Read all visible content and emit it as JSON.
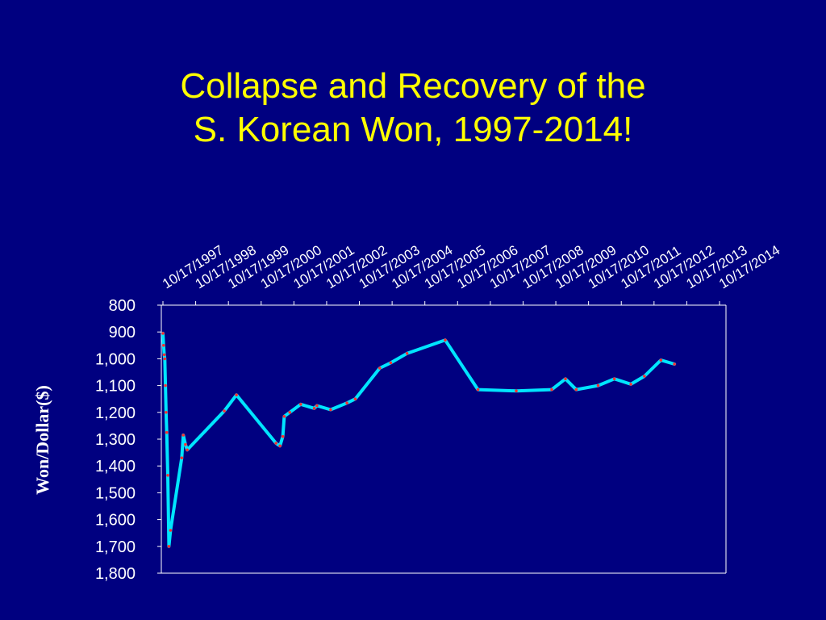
{
  "slide": {
    "title_line1": "Collapse and Recovery of the",
    "title_line2": "S. Korean Won, 1997-2014!"
  },
  "chart_data": {
    "type": "line",
    "ylabel": "Won/Dollar($)",
    "xlabel": "",
    "y_axis_inverted": true,
    "ylim": [
      800,
      1800
    ],
    "y_ticks": [
      800,
      900,
      1000,
      1100,
      1200,
      1300,
      1400,
      1500,
      1600,
      1700,
      1800
    ],
    "y_tick_labels": [
      "800",
      "900",
      "1,000",
      "1,100",
      "1,200",
      "1,300",
      "1,400",
      "1,500",
      "1,600",
      "1,700",
      "1,800"
    ],
    "x_axis_position": "top",
    "x_tick_labels": [
      "10/17/1997",
      "10/17/1998",
      "10/17/1999",
      "10/17/2000",
      "10/17/2001",
      "10/17/2002",
      "10/17/2003",
      "10/17/2004",
      "10/17/2005",
      "10/17/2006",
      "10/17/2007",
      "10/17/2008",
      "10/17/2009",
      "10/17/2010",
      "10/17/2011",
      "10/17/2012",
      "10/17/2013",
      "10/17/2014"
    ],
    "grid": false,
    "colors": {
      "line": "#00e5ff",
      "marker": "#ff3030",
      "axis": "#ffffff",
      "background": "#000080",
      "title": "#ffff00"
    },
    "series": [
      {
        "points": [
          [
            "1997-10-17",
            905
          ],
          [
            "1997-10-24",
            950
          ],
          [
            "1997-10-31",
            985
          ],
          [
            "1997-11-07",
            1000
          ],
          [
            "1997-11-14",
            1100
          ],
          [
            "1997-11-21",
            1200
          ],
          [
            "1997-11-28",
            1275
          ],
          [
            "1997-12-10",
            1435
          ],
          [
            "1997-12-23",
            1700
          ],
          [
            "1998-01-10",
            1640
          ],
          [
            "1998-05-15",
            1370
          ],
          [
            "1998-06-01",
            1285
          ],
          [
            "1998-06-25",
            1320
          ],
          [
            "1998-07-15",
            1340
          ],
          [
            "1999-09-01",
            1195
          ],
          [
            "2000-01-15",
            1135
          ],
          [
            "2001-04-01",
            1315
          ],
          [
            "2001-05-15",
            1325
          ],
          [
            "2001-06-15",
            1290
          ],
          [
            "2001-07-01",
            1215
          ],
          [
            "2001-09-01",
            1200
          ],
          [
            "2002-01-01",
            1170
          ],
          [
            "2002-06-01",
            1185
          ],
          [
            "2002-07-01",
            1175
          ],
          [
            "2002-12-01",
            1190
          ],
          [
            "2003-06-01",
            1165
          ],
          [
            "2003-09-01",
            1150
          ],
          [
            "2004-06-01",
            1035
          ],
          [
            "2004-10-01",
            1015
          ],
          [
            "2005-04-01",
            980
          ],
          [
            "2006-06-01",
            930
          ],
          [
            "2007-06-01",
            1115
          ],
          [
            "2008-08-01",
            1120
          ],
          [
            "2009-09-01",
            1115
          ],
          [
            "2010-02-01",
            1075
          ],
          [
            "2010-06-01",
            1115
          ],
          [
            "2011-02-01",
            1100
          ],
          [
            "2011-08-01",
            1075
          ],
          [
            "2012-02-01",
            1095
          ],
          [
            "2012-07-01",
            1065
          ],
          [
            "2013-01-01",
            1005
          ],
          [
            "2013-06-01",
            1020
          ]
        ]
      }
    ]
  }
}
